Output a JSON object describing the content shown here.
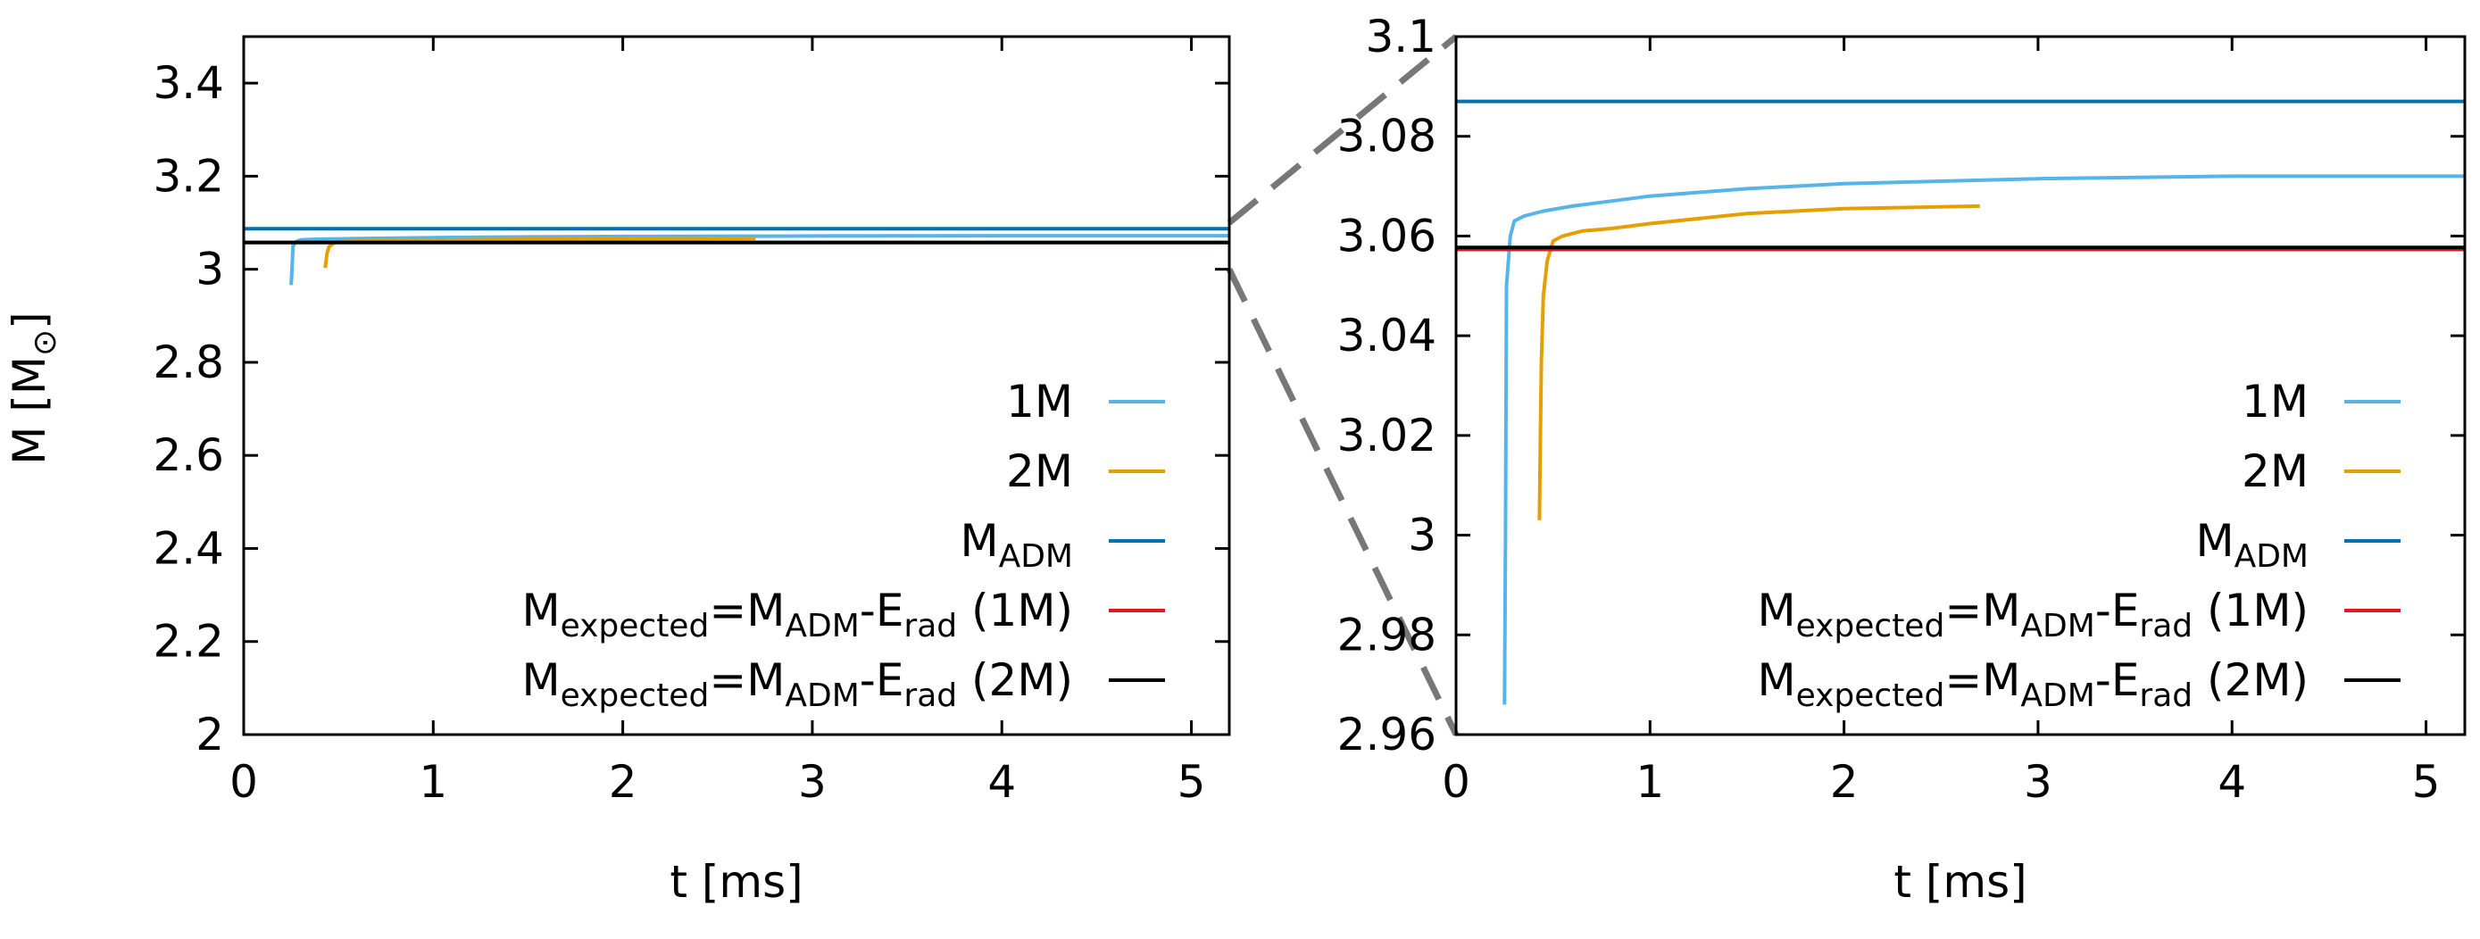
{
  "chart_data": [
    {
      "type": "line",
      "panel": "left",
      "title": "",
      "xlabel": "t [ms]",
      "ylabel_main": "M [M",
      "ylabel_sub": "⊙",
      "ylabel_close": "]",
      "xlim": [
        0,
        5.2
      ],
      "ylim": [
        2,
        3.5
      ],
      "xticks": [
        0,
        1,
        2,
        3,
        4,
        5
      ],
      "xtick_labels": [
        "0",
        "1",
        "2",
        "3",
        "4",
        "5"
      ],
      "yticks": [
        2,
        2.2,
        2.4,
        2.6,
        2.8,
        3,
        3.2,
        3.4
      ],
      "ytick_labels": [
        "2",
        "2.2",
        "2.4",
        "2.6",
        "2.8",
        "3",
        "3.2",
        "3.4"
      ],
      "grid": false,
      "legend_position": "bottom-right",
      "series": [
        {
          "name": "1M",
          "color": "#56b4e9",
          "x": [
            0.25,
            0.255,
            0.26,
            0.28,
            0.3,
            0.35,
            0.45,
            0.6,
            0.8,
            1.0,
            1.5,
            2.0,
            3.0,
            4.0,
            5.2
          ],
          "y": [
            2.966,
            3.0,
            3.05,
            3.06,
            3.063,
            3.064,
            3.065,
            3.066,
            3.067,
            3.068,
            3.0695,
            3.0705,
            3.0715,
            3.072,
            3.072
          ]
        },
        {
          "name": "2M",
          "color": "#e69f00",
          "x": [
            0.43,
            0.435,
            0.44,
            0.45,
            0.47,
            0.5,
            0.55,
            0.65,
            0.8,
            1.0,
            1.5,
            2.0,
            2.7
          ],
          "y": [
            3.003,
            3.02,
            3.035,
            3.048,
            3.055,
            3.059,
            3.06,
            3.061,
            3.0615,
            3.0625,
            3.0645,
            3.0655,
            3.066
          ]
        },
        {
          "name": "M",
          "sub": "ADM",
          "color": "#0072b2",
          "x": [
            0,
            5.2
          ],
          "y": [
            3.087,
            3.087
          ]
        },
        {
          "name": "M",
          "sub": "expected",
          "eq": "=M",
          "sub2": "ADM",
          "dash": "-E",
          "sub3": "rad",
          "tail": " (1M)",
          "color": "#e31a1c",
          "x": [
            0,
            5.2
          ],
          "y": [
            3.0573,
            3.0573
          ]
        },
        {
          "name": "M",
          "sub": "expected",
          "eq": "=M",
          "sub2": "ADM",
          "dash": "-E",
          "sub3": "rad",
          "tail": " (2M)",
          "color": "#000000",
          "x": [
            0,
            5.2
          ],
          "y": [
            3.0577,
            3.0577
          ]
        }
      ]
    },
    {
      "type": "line",
      "panel": "right",
      "title": "",
      "xlabel": "t [ms]",
      "xlim": [
        0,
        5.2
      ],
      "ylim": [
        2.96,
        3.1
      ],
      "xticks": [
        0,
        1,
        2,
        3,
        4,
        5
      ],
      "xtick_labels": [
        "0",
        "1",
        "2",
        "3",
        "4",
        "5"
      ],
      "yticks": [
        2.96,
        2.98,
        3.0,
        3.02,
        3.04,
        3.06,
        3.08,
        3.1
      ],
      "ytick_labels": [
        "2.96",
        "2.98",
        "3",
        "3.02",
        "3.04",
        "3.06",
        "3.08",
        "3.1"
      ],
      "grid": false,
      "legend_position": "bottom-right",
      "series": [
        {
          "name": "1M",
          "color": "#56b4e9",
          "x": [
            0.25,
            0.255,
            0.26,
            0.28,
            0.3,
            0.35,
            0.45,
            0.6,
            0.8,
            1.0,
            1.5,
            2.0,
            3.0,
            4.0,
            5.2
          ],
          "y": [
            2.966,
            3.0,
            3.05,
            3.06,
            3.063,
            3.064,
            3.065,
            3.066,
            3.067,
            3.068,
            3.0695,
            3.0705,
            3.0715,
            3.072,
            3.072
          ]
        },
        {
          "name": "2M",
          "color": "#e69f00",
          "x": [
            0.43,
            0.435,
            0.44,
            0.45,
            0.47,
            0.5,
            0.55,
            0.65,
            0.8,
            1.0,
            1.5,
            2.0,
            2.7
          ],
          "y": [
            3.003,
            3.02,
            3.035,
            3.048,
            3.055,
            3.059,
            3.06,
            3.061,
            3.0615,
            3.0625,
            3.0645,
            3.0655,
            3.066
          ]
        },
        {
          "name": "M",
          "sub": "ADM",
          "color": "#0072b2",
          "x": [
            0,
            5.2
          ],
          "y": [
            3.087,
            3.087
          ]
        },
        {
          "name": "M",
          "sub": "expected",
          "eq": "=M",
          "sub2": "ADM",
          "dash": "-E",
          "sub3": "rad",
          "tail": " (1M)",
          "color": "#e31a1c",
          "x": [
            0,
            5.2
          ],
          "y": [
            3.0573,
            3.0573
          ]
        },
        {
          "name": "M",
          "sub": "expected",
          "eq": "=M",
          "sub2": "ADM",
          "dash": "-E",
          "sub3": "rad",
          "tail": " (2M)",
          "color": "#000000",
          "x": [
            0,
            5.2
          ],
          "y": [
            3.0577,
            3.0577
          ]
        }
      ]
    }
  ],
  "zoom_connector": {
    "color": "#777777",
    "from_panel": "left",
    "to_panel": "right",
    "y_range": [
      3.0,
      3.1
    ]
  }
}
